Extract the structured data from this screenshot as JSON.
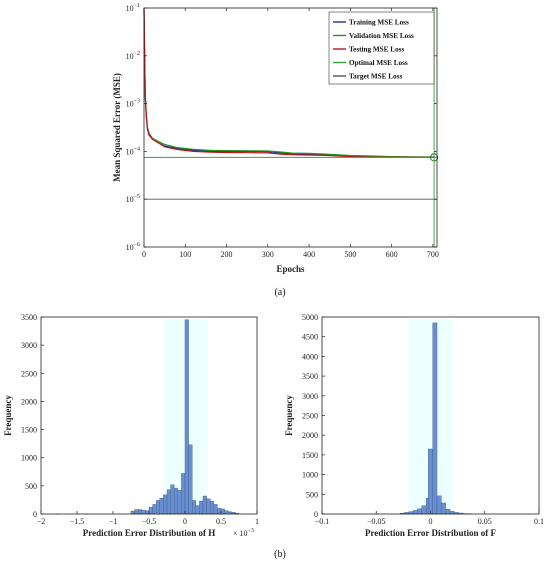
{
  "captions": {
    "a": "(a)",
    "b": "(b)"
  },
  "chart_data": [
    {
      "type": "line",
      "xlabel": "Epochs",
      "ylabel": "Mean Squared Error (MSE)",
      "yscale": "log",
      "xlim": [
        0,
        710
      ],
      "ylim": [
        1e-06,
        0.1
      ],
      "xticks": [
        "0",
        "100",
        "200",
        "300",
        "400",
        "500",
        "600",
        "700"
      ],
      "xtick_values": [
        0,
        100,
        200,
        300,
        400,
        500,
        600,
        700
      ],
      "yticks": [
        {
          "value": 1e-06,
          "base": "10",
          "exp": "−6"
        },
        {
          "value": 1e-05,
          "base": "10",
          "exp": "−5"
        },
        {
          "value": 0.0001,
          "base": "10",
          "exp": "−4"
        },
        {
          "value": 0.001,
          "base": "10",
          "exp": "−3"
        },
        {
          "value": 0.01,
          "base": "10",
          "exp": "−2"
        },
        {
          "value": 0.1,
          "base": "10",
          "exp": "−1"
        }
      ],
      "legend_position": "top-right",
      "series": [
        {
          "name": "Training MSE Loss",
          "color": "#1f2fa8",
          "x": [
            0,
            1,
            2,
            3,
            5,
            8,
            12,
            20,
            30,
            50,
            80,
            120,
            160,
            200,
            260,
            300,
            330,
            360,
            400,
            450,
            500,
            550,
            600,
            650,
            700,
            705
          ],
          "y": [
            0.09,
            0.02,
            0.005,
            0.0015,
            0.0006,
            0.0003,
            0.00022,
            0.00018,
            0.00016,
            0.00013,
            0.000115,
            0.000105,
            0.0001,
            0.0001,
            0.0001,
            9.85e-05,
            9.3e-05,
            8.8e-05,
            8.8e-05,
            8.5e-05,
            8e-05,
            7.8e-05,
            7.7e-05,
            7.6e-05,
            7.55e-05,
            7.55e-05
          ]
        },
        {
          "name": "Validation MSE Loss",
          "color": "#1a9a1a",
          "x": [
            0,
            1,
            2,
            3,
            5,
            8,
            12,
            20,
            30,
            50,
            80,
            120,
            160,
            200,
            260,
            300,
            330,
            360,
            400,
            450,
            500,
            550,
            600,
            650,
            700,
            705
          ],
          "y": [
            0.095,
            0.022,
            0.0055,
            0.0016,
            0.00065,
            0.00032,
            0.00024,
            0.00019,
            0.00017,
            0.00014,
            0.00012,
            0.00011,
            0.000105,
            0.000104,
            0.000103,
            0.000102,
            9.7e-05,
            9.2e-05,
            9.1e-05,
            8.7e-05,
            8.2e-05,
            8e-05,
            7.8e-05,
            7.7e-05,
            7.65e-05,
            7.65e-05
          ]
        },
        {
          "name": "Testing MSE Loss",
          "color": "#c0141c",
          "x": [
            0,
            1,
            2,
            3,
            5,
            8,
            12,
            20,
            30,
            50,
            80,
            120,
            160,
            200,
            260,
            300,
            330,
            360,
            400,
            450,
            500,
            550,
            600,
            650,
            700,
            705
          ],
          "y": [
            0.1,
            0.025,
            0.006,
            0.0017,
            0.0007,
            0.00033,
            0.00023,
            0.00018,
            0.00016,
            0.000125,
            0.00011,
            0.0001,
            9.6e-05,
            9.5e-05,
            9.4e-05,
            9.3e-05,
            8.8e-05,
            8.5e-05,
            8.4e-05,
            8.2e-05,
            7.8e-05,
            7.6e-05,
            7.55e-05,
            7.52e-05,
            7.5e-05,
            7.5e-05
          ]
        },
        {
          "name": "Optimal MSE Loss",
          "color": "#3aa13a",
          "hline": 7.5e-05,
          "vline": 703
        },
        {
          "name": "Target MSE Loss",
          "color": "#555555",
          "hline": 1e-05
        }
      ],
      "marker": {
        "x": 703,
        "y": 7.5e-05
      }
    },
    {
      "type": "histogram",
      "xlabel": "Prediction Error Distribution of H",
      "ylabel": "Frequency",
      "xlim": [
        -2,
        1
      ],
      "x_multiplier": {
        "base": "× 10",
        "exp": "−3"
      },
      "ylim": [
        0,
        3500
      ],
      "xticks": [
        "−2",
        "−1.5",
        "−1",
        "−0.5",
        "0",
        "0.5",
        "1"
      ],
      "xtick_values": [
        -2,
        -1.5,
        -1,
        -0.5,
        0,
        0.5,
        1
      ],
      "yticks": [
        "0",
        "500",
        "1000",
        "1500",
        "2000",
        "2500",
        "3000",
        "3500"
      ],
      "ytick_values": [
        0,
        500,
        1000,
        1500,
        2000,
        2500,
        3000,
        3500
      ],
      "bar_color": "#6a8fd0",
      "bin_width": 0.05,
      "bins": [
        [
          -1.8,
          2
        ],
        [
          -1.4,
          2
        ],
        [
          -0.75,
          50
        ],
        [
          -0.7,
          80
        ],
        [
          -0.65,
          80
        ],
        [
          -0.6,
          70
        ],
        [
          -0.55,
          60
        ],
        [
          -0.5,
          120
        ],
        [
          -0.45,
          170
        ],
        [
          -0.4,
          240
        ],
        [
          -0.35,
          280
        ],
        [
          -0.3,
          340
        ],
        [
          -0.25,
          430
        ],
        [
          -0.2,
          520
        ],
        [
          -0.15,
          460
        ],
        [
          -0.1,
          420
        ],
        [
          -0.05,
          720
        ],
        [
          0.0,
          3450
        ],
        [
          0.05,
          1230
        ],
        [
          0.1,
          240
        ],
        [
          0.15,
          150
        ],
        [
          0.2,
          230
        ],
        [
          0.25,
          320
        ],
        [
          0.3,
          270
        ],
        [
          0.35,
          230
        ],
        [
          0.4,
          170
        ],
        [
          0.45,
          100
        ],
        [
          0.5,
          90
        ],
        [
          0.55,
          60
        ],
        [
          0.6,
          40
        ],
        [
          0.65,
          30
        ],
        [
          0.7,
          15
        ]
      ]
    },
    {
      "type": "histogram",
      "xlabel": "Prediction Error Distribution of F",
      "ylabel": "Frequency",
      "xlim": [
        -0.1,
        0.1
      ],
      "ylim": [
        0,
        5000
      ],
      "xticks": [
        "−0.1",
        "−0.05",
        "0",
        "0.05",
        "0.1"
      ],
      "xtick_values": [
        -0.1,
        -0.05,
        0,
        0.05,
        0.1
      ],
      "yticks": [
        "0",
        "500",
        "1000",
        "1500",
        "2000",
        "2500",
        "3000",
        "3500",
        "4000",
        "4500",
        "5000"
      ],
      "ytick_values": [
        0,
        500,
        1000,
        1500,
        2000,
        2500,
        3000,
        3500,
        4000,
        4500,
        5000
      ],
      "bar_color": "#6a8fd0",
      "bin_width": 0.004,
      "bins": [
        [
          -0.052,
          3
        ],
        [
          -0.028,
          20
        ],
        [
          -0.024,
          40
        ],
        [
          -0.02,
          60
        ],
        [
          -0.016,
          90
        ],
        [
          -0.012,
          130
        ],
        [
          -0.008,
          210
        ],
        [
          -0.004,
          400
        ],
        [
          -0.002,
          1650
        ],
        [
          0.002,
          4850
        ],
        [
          0.006,
          460
        ],
        [
          0.01,
          280
        ],
        [
          0.014,
          120
        ],
        [
          0.018,
          70
        ],
        [
          0.022,
          40
        ],
        [
          0.026,
          25
        ],
        [
          0.03,
          12
        ],
        [
          0.034,
          6
        ]
      ]
    }
  ]
}
